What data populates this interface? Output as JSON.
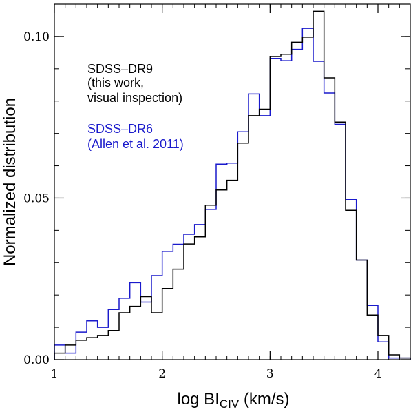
{
  "chart_data": {
    "type": "histogram-step",
    "title": "",
    "xlabel": "log BI",
    "xlabel_sub": "CIV",
    "xlabel_unit": " (km/s)",
    "ylabel": "Normalized distribution",
    "xlim": [
      1.0,
      4.3
    ],
    "ylim": [
      0.0,
      0.11
    ],
    "xticks": [
      1,
      2,
      3,
      4
    ],
    "xtick_labels": [
      "1",
      "2",
      "3",
      "4"
    ],
    "yticks": [
      0.0,
      0.05,
      0.1
    ],
    "ytick_labels": [
      "0.00",
      "0.05",
      "0.10"
    ],
    "bin_edges": [
      1.0,
      1.1,
      1.2,
      1.3,
      1.4,
      1.5,
      1.6,
      1.7,
      1.8,
      1.9,
      2.0,
      2.1,
      2.2,
      2.3,
      2.4,
      2.5,
      2.6,
      2.7,
      2.8,
      2.9,
      3.0,
      3.1,
      3.2,
      3.3,
      3.4,
      3.5,
      3.6,
      3.7,
      3.8,
      3.9,
      4.0,
      4.1,
      4.2,
      4.3
    ],
    "series": [
      {
        "name": "SDSS–DR6 (Allen et al. 2011)",
        "color": "#1a1acc",
        "values": [
          0.0045,
          0.002,
          0.0085,
          0.012,
          0.01,
          0.0155,
          0.019,
          0.0238,
          0.0178,
          0.026,
          0.0335,
          0.0357,
          0.0388,
          0.0418,
          0.0465,
          0.0605,
          0.0608,
          0.0705,
          0.0822,
          0.0755,
          0.0932,
          0.0925,
          0.096,
          0.1025,
          0.0923,
          0.0825,
          0.0728,
          0.0495,
          0.0308,
          0.0168,
          0.0055,
          0.0005,
          0.0005
        ]
      },
      {
        "name": "SDSS–DR9 (this work, visual inspection)",
        "color": "#000000",
        "values": [
          0.002,
          0.0045,
          0.006,
          0.0068,
          0.0075,
          0.009,
          0.0145,
          0.0165,
          0.0195,
          0.0145,
          0.022,
          0.028,
          0.0358,
          0.038,
          0.0478,
          0.0525,
          0.0555,
          0.067,
          0.0755,
          0.0775,
          0.0938,
          0.0945,
          0.0982,
          0.0998,
          0.1078,
          0.0872,
          0.0735,
          0.0462,
          0.0308,
          0.0138,
          0.0075,
          0.0015,
          0.0005
        ]
      }
    ],
    "legend": {
      "dr9_lines": [
        "SDSS–DR9",
        "(this work,",
        "visual inspection)"
      ],
      "dr6_lines": [
        "SDSS–DR6",
        "(Allen et al. 2011)"
      ]
    }
  }
}
